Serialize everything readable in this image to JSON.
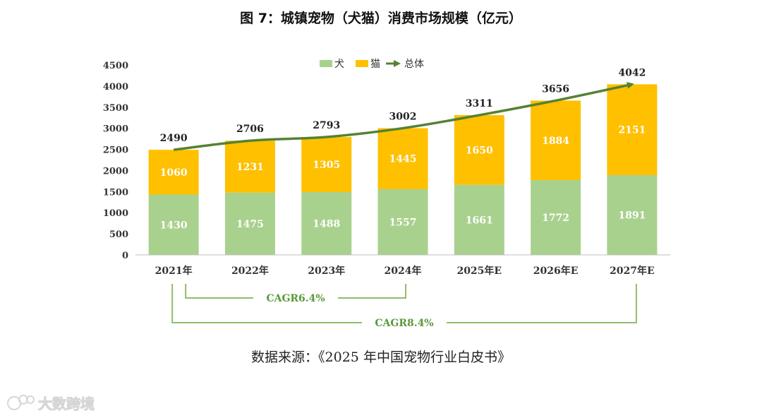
{
  "chart_data": {
    "type": "bar",
    "stacked": true,
    "title": "图 7：城镇宠物（犬猫）消费市场规模（亿元）",
    "categories": [
      "2021年",
      "2022年",
      "2023年",
      "2024年",
      "2025年E",
      "2026年E",
      "2027年E"
    ],
    "series": [
      {
        "name": "犬",
        "values": [
          1430,
          1475,
          1488,
          1557,
          1661,
          1772,
          1891
        ],
        "color": "#a9d18e"
      },
      {
        "name": "猫",
        "values": [
          1060,
          1231,
          1305,
          1445,
          1650,
          1884,
          2151
        ],
        "color": "#ffc000"
      }
    ],
    "total": {
      "name": "总体",
      "values": [
        2490,
        2706,
        2793,
        3002,
        3311,
        3656,
        4042
      ],
      "color": "#548235"
    },
    "ylim": [
      0,
      4500
    ],
    "yticks": [
      0,
      500,
      1000,
      1500,
      2000,
      2500,
      3000,
      3500,
      4000,
      4500
    ],
    "legend_position": "top-center",
    "annotations": [
      {
        "label": "CAGR6.4%",
        "from": "2021年",
        "to": "2024年"
      },
      {
        "label": "CAGR8.4%",
        "from": "2021年",
        "to": "2027年E"
      }
    ],
    "source": "数据来源：《2025 年中国宠物行业白皮书》"
  },
  "watermark": {
    "text": "大数跨境"
  }
}
